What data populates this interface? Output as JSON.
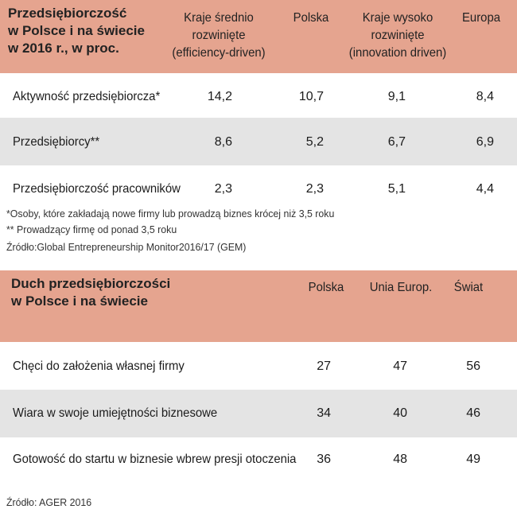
{
  "table1": {
    "title_lines": [
      "Przedsiębiorczość",
      "w Polsce i na świecie",
      "w 2016 r., w proc."
    ],
    "columns": [
      {
        "lines": [
          "Kraje średnio",
          "rozwinięte",
          "(efficiency-driven)"
        ]
      },
      {
        "lines": [
          "Polska"
        ]
      },
      {
        "lines": [
          "Kraje wysoko",
          "rozwinięte",
          "(innovation driven)"
        ]
      },
      {
        "lines": [
          "Europa"
        ]
      }
    ],
    "rows": [
      {
        "label": "Aktywność przedsiębiorcza*",
        "values": [
          "14,2",
          "10,7",
          "9,1",
          "8,4"
        ]
      },
      {
        "label": "Przedsiębiorcy**",
        "values": [
          "8,6",
          "5,2",
          "6,7",
          "6,9"
        ]
      },
      {
        "label": "Przedsiębiorczość pracowników",
        "values": [
          "2,3",
          "2,3",
          "5,1",
          "4,4"
        ]
      }
    ],
    "footnotes": [
      "*Osoby, które zakładają nowe firmy lub prowadzą biznes krócej niż  3,5 roku",
      "** Prowadzący firmę od ponad 3,5 roku",
      "Źródło:Global Entrepreneurship Monitor2016/17 (GEM)"
    ]
  },
  "table2": {
    "title_lines": [
      "Duch przedsiębiorczości",
      "w Polsce i na świecie"
    ],
    "columns": [
      "Polska",
      "Unia Europ.",
      "Świat"
    ],
    "rows": [
      {
        "label": "Chęci do założenia własnej firmy",
        "values": [
          "27",
          "47",
          "56"
        ]
      },
      {
        "label": "Wiara w swoje umiejętności biznesowe",
        "values": [
          "34",
          "40",
          "46"
        ]
      },
      {
        "label": "Gotowość do startu w biznesie wbrew presji otoczenia",
        "values": [
          "36",
          "48",
          "49"
        ]
      }
    ],
    "source": "Źródło: AGER 2016"
  },
  "colors": {
    "header": "#e5a48f",
    "stripe": "#e4e4e4"
  }
}
